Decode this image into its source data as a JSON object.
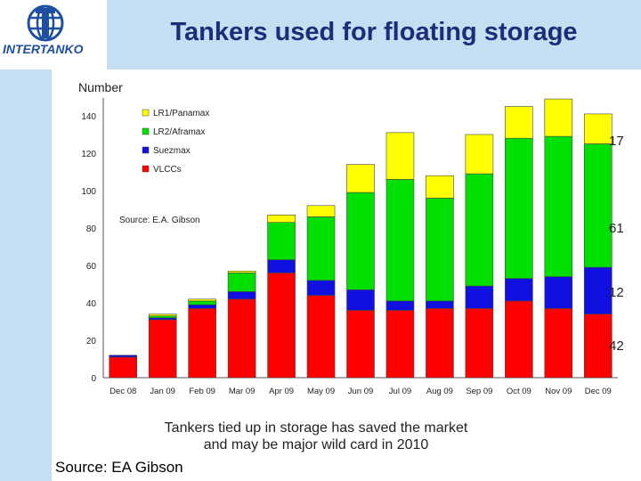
{
  "title": "Tankers used for floating storage",
  "logo_text": "INTERTANKO",
  "number_label": "Number",
  "chart_source": "Source: E.A. Gibson",
  "right_labels": [
    "17",
    "61",
    "12",
    "42"
  ],
  "caption_line1": "Tankers tied up in storage has saved the market",
  "caption_line2": "and may be major wild card in 2010",
  "bottom_source": "Source: EA Gibson",
  "colors": {
    "LR1/Panamax": "#ffff00",
    "LR2/Aframax": "#00e000",
    "Suezmax": "#1010e0",
    "VLCCs": "#ff0000",
    "header": "#c6def2",
    "title": "#1a2f7a"
  },
  "chart_data": {
    "type": "bar",
    "stacked": true,
    "categories": [
      "Dec 08",
      "Jan 09",
      "Feb 09",
      "Mar 09",
      "Apr 09",
      "May 09",
      "Jun 09",
      "Jul 09",
      "Aug 09",
      "Sep 09",
      "Oct 09",
      "Nov 09",
      "Dec 09"
    ],
    "series": [
      {
        "name": "VLCCs",
        "values": [
          11,
          31,
          37,
          42,
          56,
          44,
          36,
          36,
          37,
          37,
          41,
          37,
          34
        ]
      },
      {
        "name": "Suezmax",
        "values": [
          1,
          1,
          2,
          4,
          7,
          8,
          11,
          5,
          4,
          12,
          12,
          17,
          25
        ]
      },
      {
        "name": "LR2/Aframax",
        "values": [
          0,
          1,
          2,
          10,
          20,
          34,
          52,
          65,
          55,
          60,
          75,
          75,
          66
        ]
      },
      {
        "name": "LR1/Panamax",
        "values": [
          0,
          1,
          1,
          1,
          4,
          6,
          15,
          25,
          12,
          21,
          17,
          20,
          16
        ]
      }
    ],
    "yticks": [
      0,
      20,
      40,
      60,
      80,
      100,
      120,
      140
    ],
    "ylim": [
      0,
      150
    ],
    "legend_position": "top-left",
    "grid": false
  }
}
